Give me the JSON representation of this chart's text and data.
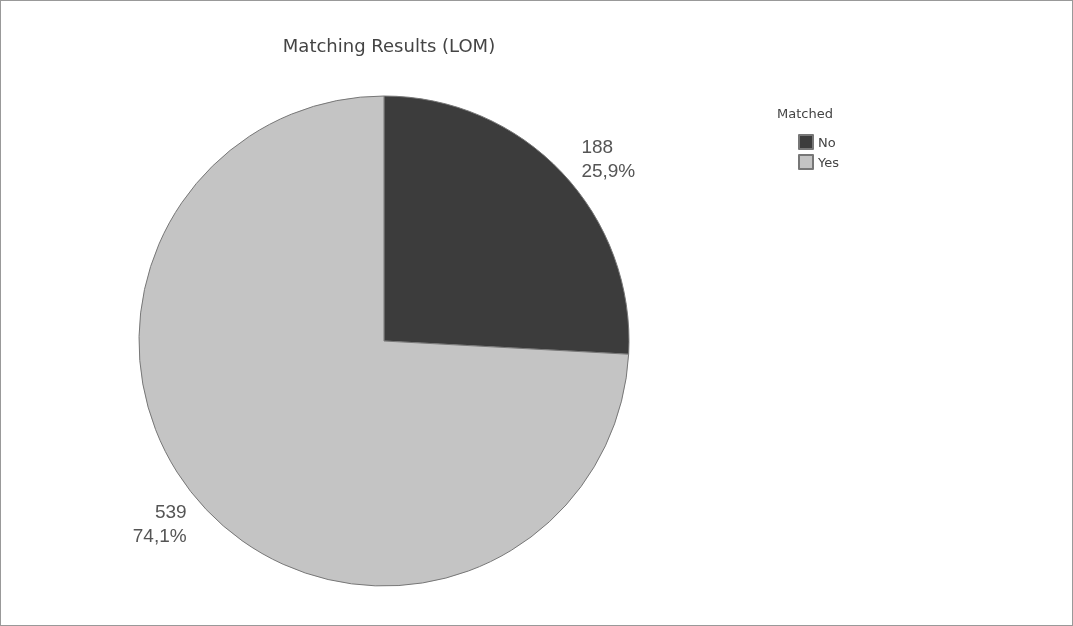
{
  "chart_data": {
    "type": "pie",
    "title": "Matching Results (LOM)",
    "legend_title": "Matched",
    "categories": [
      "No",
      "Yes"
    ],
    "values": [
      188,
      539
    ],
    "colors": [
      "#3c3c3c",
      "#c4c4c4"
    ],
    "value_labels": [
      "188\n25,9%",
      "539\n74,1%"
    ],
    "legend": "top right"
  }
}
